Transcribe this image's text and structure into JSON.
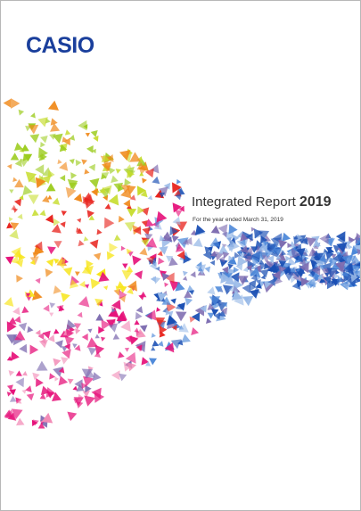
{
  "cover": {
    "logo": "CASIO",
    "title": "Integrated Report",
    "year": "2019",
    "subtitle": "For the year ended March 31, 2019"
  },
  "colors": {
    "logo": "#1a3f9c",
    "text": "#333333",
    "palette": [
      "#9ccc1e",
      "#c6dc2a",
      "#e8241e",
      "#f08a1c",
      "#f7e51a",
      "#e6127a",
      "#f28ab6",
      "#1a4fb4",
      "#4a86d8",
      "#9bbbe8",
      "#7d6bb0"
    ]
  }
}
